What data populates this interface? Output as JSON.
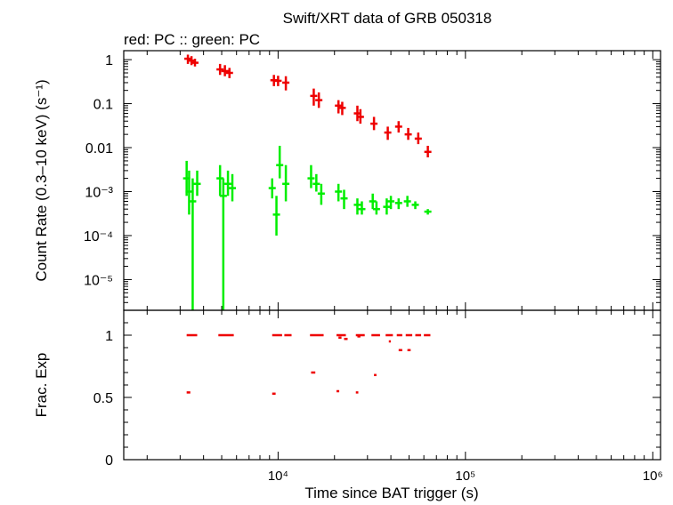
{
  "chart_data": [
    {
      "type": "scatter",
      "title": "Swift/XRT data of GRB 050318",
      "subtitle": "red: PC  :: green: PC",
      "xlabel": "",
      "ylabel": "Count Rate (0.3–10 keV) (s⁻¹)",
      "xscale": "log",
      "yscale": "log",
      "xlim": [
        1500,
        1100000
      ],
      "ylim": [
        2e-06,
        1.6
      ],
      "yticks": [
        {
          "value": 1,
          "label": "1"
        },
        {
          "value": 0.1,
          "label": "0.1"
        },
        {
          "value": 0.01,
          "label": "0.01"
        },
        {
          "value": 0.001,
          "label": "10⁻³"
        },
        {
          "value": 0.0001,
          "label": "10⁻⁴"
        },
        {
          "value": 1e-05,
          "label": "10⁻⁵"
        }
      ],
      "series": [
        {
          "name": "red: PC",
          "color": "#ee0000",
          "points": [
            {
              "x": 3300,
              "y": 1.05,
              "lo": 0.8,
              "hi": 1.3
            },
            {
              "x": 3450,
              "y": 0.95,
              "lo": 0.75,
              "hi": 1.2
            },
            {
              "x": 3600,
              "y": 0.85,
              "lo": 0.7,
              "hi": 1.05
            },
            {
              "x": 4900,
              "y": 0.6,
              "lo": 0.45,
              "hi": 0.8
            },
            {
              "x": 5200,
              "y": 0.55,
              "lo": 0.42,
              "hi": 0.75
            },
            {
              "x": 5500,
              "y": 0.5,
              "lo": 0.38,
              "hi": 0.65
            },
            {
              "x": 9500,
              "y": 0.34,
              "lo": 0.25,
              "hi": 0.45
            },
            {
              "x": 10000,
              "y": 0.33,
              "lo": 0.25,
              "hi": 0.43
            },
            {
              "x": 11000,
              "y": 0.3,
              "lo": 0.2,
              "hi": 0.42
            },
            {
              "x": 15500,
              "y": 0.15,
              "lo": 0.09,
              "hi": 0.22
            },
            {
              "x": 16500,
              "y": 0.12,
              "lo": 0.08,
              "hi": 0.18
            },
            {
              "x": 21000,
              "y": 0.09,
              "lo": 0.06,
              "hi": 0.12
            },
            {
              "x": 22000,
              "y": 0.08,
              "lo": 0.055,
              "hi": 0.11
            },
            {
              "x": 26500,
              "y": 0.06,
              "lo": 0.04,
              "hi": 0.09
            },
            {
              "x": 27500,
              "y": 0.05,
              "lo": 0.035,
              "hi": 0.075
            },
            {
              "x": 32500,
              "y": 0.035,
              "lo": 0.025,
              "hi": 0.05
            },
            {
              "x": 38500,
              "y": 0.022,
              "lo": 0.015,
              "hi": 0.03
            },
            {
              "x": 44000,
              "y": 0.03,
              "lo": 0.022,
              "hi": 0.04
            },
            {
              "x": 49500,
              "y": 0.02,
              "lo": 0.015,
              "hi": 0.028
            },
            {
              "x": 56000,
              "y": 0.016,
              "lo": 0.012,
              "hi": 0.022
            },
            {
              "x": 63000,
              "y": 0.008,
              "lo": 0.006,
              "hi": 0.011
            }
          ]
        },
        {
          "name": "green: PC",
          "color": "#00ee00",
          "points": [
            {
              "x": 3250,
              "y": 0.002,
              "lo": 0.0008,
              "hi": 0.005
            },
            {
              "x": 3350,
              "y": 0.001,
              "lo": 0.0003,
              "hi": 0.003
            },
            {
              "x": 3500,
              "y": 0.0006,
              "lo": 2e-06,
              "hi": 0.002
            },
            {
              "x": 3700,
              "y": 0.0015,
              "lo": 0.0008,
              "hi": 0.003
            },
            {
              "x": 4900,
              "y": 0.002,
              "lo": 0.0008,
              "hi": 0.004
            },
            {
              "x": 5100,
              "y": 0.0008,
              "lo": 2e-06,
              "hi": 0.002
            },
            {
              "x": 5400,
              "y": 0.0015,
              "lo": 0.0008,
              "hi": 0.003
            },
            {
              "x": 5700,
              "y": 0.0012,
              "lo": 0.0006,
              "hi": 0.0025
            },
            {
              "x": 9300,
              "y": 0.0012,
              "lo": 0.0007,
              "hi": 0.002
            },
            {
              "x": 9800,
              "y": 0.0003,
              "lo": 0.0001,
              "hi": 0.0008
            },
            {
              "x": 10200,
              "y": 0.004,
              "lo": 0.002,
              "hi": 0.011
            },
            {
              "x": 11000,
              "y": 0.0015,
              "lo": 0.0006,
              "hi": 0.004
            },
            {
              "x": 15000,
              "y": 0.002,
              "lo": 0.0012,
              "hi": 0.004
            },
            {
              "x": 16000,
              "y": 0.0015,
              "lo": 0.001,
              "hi": 0.0025
            },
            {
              "x": 17000,
              "y": 0.0009,
              "lo": 0.0005,
              "hi": 0.0015
            },
            {
              "x": 21000,
              "y": 0.001,
              "lo": 0.0006,
              "hi": 0.0015
            },
            {
              "x": 22500,
              "y": 0.0007,
              "lo": 0.0004,
              "hi": 0.0011
            },
            {
              "x": 26500,
              "y": 0.0005,
              "lo": 0.0003,
              "hi": 0.0007
            },
            {
              "x": 28000,
              "y": 0.0004,
              "lo": 0.0003,
              "hi": 0.0006
            },
            {
              "x": 32000,
              "y": 0.0006,
              "lo": 0.0004,
              "hi": 0.0009
            },
            {
              "x": 33500,
              "y": 0.0004,
              "lo": 0.0003,
              "hi": 0.0006
            },
            {
              "x": 38000,
              "y": 0.00045,
              "lo": 0.0003,
              "hi": 0.0007
            },
            {
              "x": 40000,
              "y": 0.0006,
              "lo": 0.0004,
              "hi": 0.0008
            },
            {
              "x": 44000,
              "y": 0.00055,
              "lo": 0.0004,
              "hi": 0.0007
            },
            {
              "x": 49000,
              "y": 0.0006,
              "lo": 0.00045,
              "hi": 0.0008
            },
            {
              "x": 54000,
              "y": 0.0005,
              "lo": 0.0004,
              "hi": 0.0006
            },
            {
              "x": 63000,
              "y": 0.00035,
              "lo": 0.0003,
              "hi": 0.0004
            }
          ]
        }
      ]
    },
    {
      "type": "scatter",
      "xlabel": "Time since BAT trigger (s)",
      "ylabel": "Frac. Exp",
      "xscale": "log",
      "xlim": [
        1500,
        1100000
      ],
      "ylim": [
        0,
        1.2
      ],
      "yticks": [
        {
          "value": 0,
          "label": "0"
        },
        {
          "value": 0.5,
          "label": "0.5"
        },
        {
          "value": 1,
          "label": "1"
        }
      ],
      "xticks": [
        {
          "value": 10000,
          "label": "10⁴"
        },
        {
          "value": 100000,
          "label": "10⁵"
        },
        {
          "value": 1000000,
          "label": "10⁶"
        }
      ],
      "series": [
        {
          "name": "",
          "color": "#ee0000",
          "segments": [
            {
              "x1": 3250,
              "x2": 3700,
              "y": 1.0
            },
            {
              "x1": 4800,
              "x2": 5800,
              "y": 1.0
            },
            {
              "x1": 9300,
              "x2": 10500,
              "y": 1.0
            },
            {
              "x1": 10800,
              "x2": 11800,
              "y": 1.0
            },
            {
              "x1": 14800,
              "x2": 17500,
              "y": 1.0
            },
            {
              "x1": 20500,
              "x2": 23000,
              "y": 1.0
            },
            {
              "x1": 26000,
              "x2": 29000,
              "y": 1.0
            },
            {
              "x1": 31500,
              "x2": 35000,
              "y": 1.0
            },
            {
              "x1": 37500,
              "x2": 41000,
              "y": 1.0
            },
            {
              "x1": 43000,
              "x2": 46000,
              "y": 1.0
            },
            {
              "x1": 48000,
              "x2": 52000,
              "y": 1.0
            },
            {
              "x1": 54000,
              "x2": 58000,
              "y": 1.0
            },
            {
              "x1": 60000,
              "x2": 65000,
              "y": 1.0
            },
            {
              "x1": 21000,
              "x2": 21800,
              "y": 0.98
            },
            {
              "x1": 22500,
              "x2": 23500,
              "y": 0.97
            },
            {
              "x1": 26500,
              "x2": 27500,
              "y": 0.99
            },
            {
              "x1": 39000,
              "x2": 40000,
              "y": 0.95
            },
            {
              "x1": 44000,
              "x2": 46000,
              "y": 0.88
            },
            {
              "x1": 49000,
              "x2": 51000,
              "y": 0.88
            },
            {
              "x1": 15000,
              "x2": 15800,
              "y": 0.7
            },
            {
              "x1": 32500,
              "x2": 33500,
              "y": 0.68
            },
            {
              "x1": 3250,
              "x2": 3400,
              "y": 0.54
            },
            {
              "x1": 9300,
              "x2": 9700,
              "y": 0.53
            },
            {
              "x1": 20500,
              "x2": 21200,
              "y": 0.55
            },
            {
              "x1": 26000,
              "x2": 26800,
              "y": 0.54
            }
          ]
        }
      ]
    }
  ]
}
